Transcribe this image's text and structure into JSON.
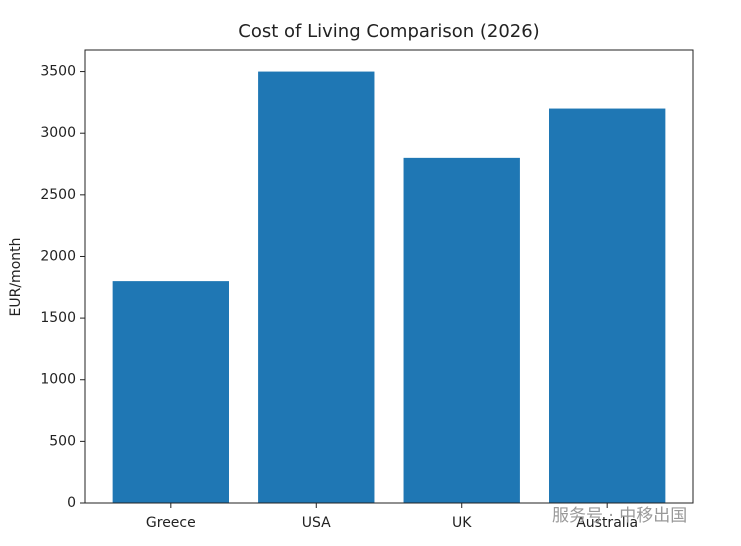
{
  "chart_data": {
    "type": "bar",
    "title": "Cost of Living Comparison (2026)",
    "y_label": "EUR/month",
    "categories": [
      "Greece",
      "USA",
      "UK",
      "Australia"
    ],
    "values": [
      1800,
      3500,
      2800,
      3200
    ],
    "color": "#1f77b4",
    "ylim": [
      0,
      3675
    ],
    "yticks": [
      0,
      500,
      1000,
      1500,
      2000,
      2500,
      3000,
      3500
    ],
    "grid": false,
    "watermark": "服务号 · 中移出国"
  }
}
